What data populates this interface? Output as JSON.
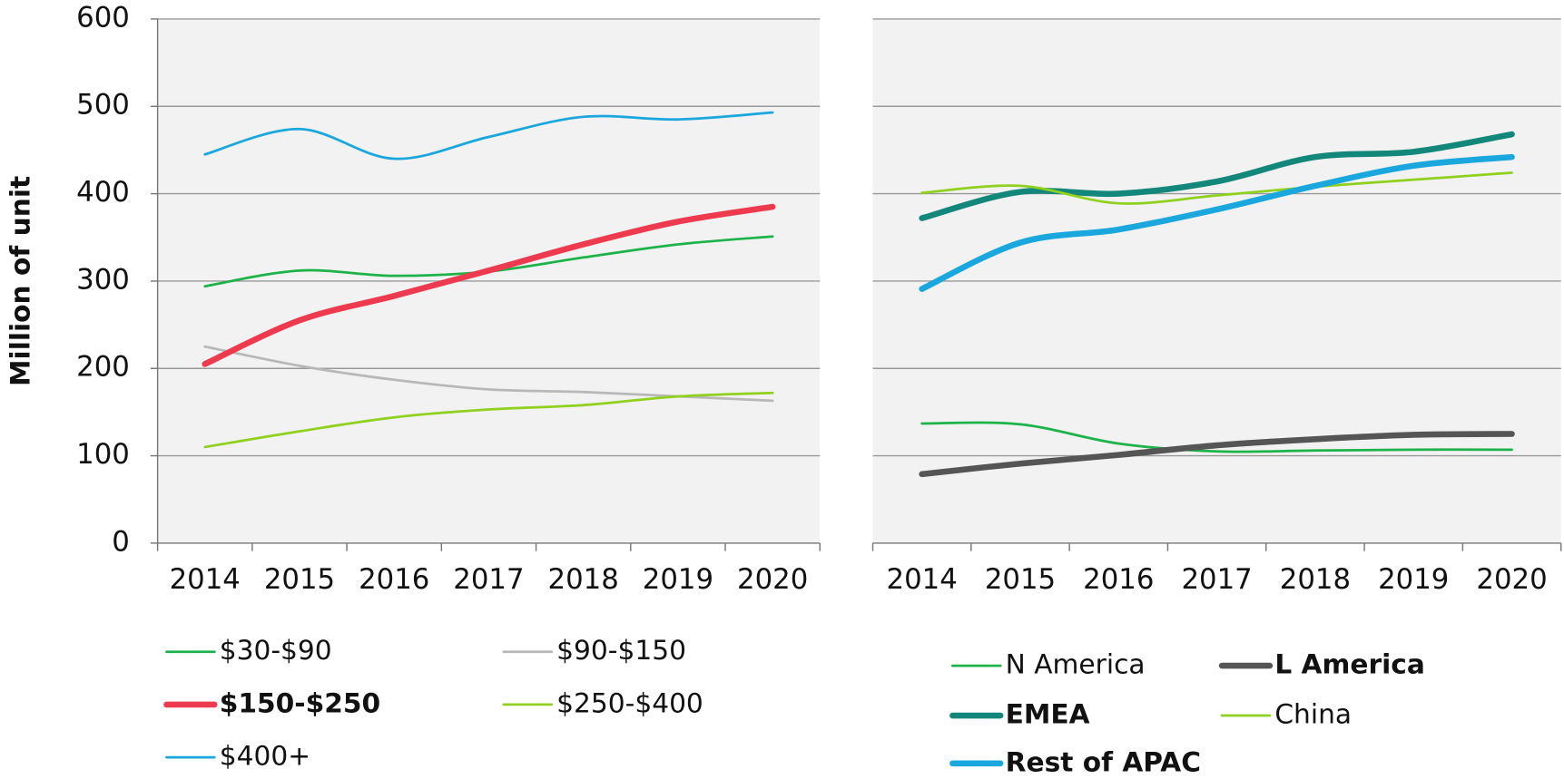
{
  "chart_data": [
    {
      "type": "line",
      "y_label": "Million of unit",
      "categories": [
        "2014",
        "2015",
        "2016",
        "2017",
        "2018",
        "2019",
        "2020"
      ],
      "ylim": [
        0,
        600
      ],
      "yticks": [
        0,
        100,
        200,
        300,
        400,
        500,
        600
      ],
      "grid": true,
      "ytick_labels": true,
      "series": [
        {
          "name": "$30-$90",
          "color": "#1db34a",
          "width": 2.5,
          "values": [
            294,
            312,
            306,
            311,
            327,
            342,
            351
          ]
        },
        {
          "name": "$90-$150",
          "color": "#b8b8b8",
          "width": 2.5,
          "values": [
            225,
            203,
            187,
            176,
            173,
            168,
            163
          ]
        },
        {
          "name": "$150-$250",
          "color": "#ee3a4f",
          "width": 6,
          "values": [
            205,
            255,
            283,
            312,
            342,
            368,
            385
          ]
        },
        {
          "name": "$250-$400",
          "color": "#8fd11e",
          "width": 2.5,
          "values": [
            110,
            128,
            144,
            153,
            158,
            168,
            172
          ]
        },
        {
          "name": "$400+",
          "color": "#1aa7dd",
          "width": 2.5,
          "values": [
            445,
            474,
            440,
            465,
            488,
            485,
            493
          ]
        }
      ]
    },
    {
      "type": "line",
      "categories": [
        "2014",
        "2015",
        "2016",
        "2017",
        "2018",
        "2019",
        "2020"
      ],
      "ylim": [
        0,
        600
      ],
      "yticks": [
        0,
        100,
        200,
        300,
        400,
        500,
        600
      ],
      "grid": true,
      "ytick_labels": false,
      "series": [
        {
          "name": "N America",
          "color": "#1db34a",
          "width": 2.5,
          "values": [
            137,
            136,
            114,
            105,
            106,
            107,
            107
          ]
        },
        {
          "name": "L America",
          "color": "#555555",
          "width": 6,
          "values": [
            79,
            91,
            101,
            112,
            119,
            124,
            125
          ]
        },
        {
          "name": "EMEA",
          "color": "#14877b",
          "width": 6,
          "values": [
            372,
            402,
            400,
            414,
            442,
            448,
            468
          ]
        },
        {
          "name": "China",
          "color": "#8fd11e",
          "width": 2.5,
          "values": [
            401,
            409,
            389,
            398,
            408,
            416,
            424
          ]
        },
        {
          "name": "Rest of APAC",
          "color": "#1aa7dd",
          "width": 6,
          "values": [
            291,
            344,
            359,
            382,
            409,
            432,
            442
          ]
        }
      ]
    }
  ]
}
